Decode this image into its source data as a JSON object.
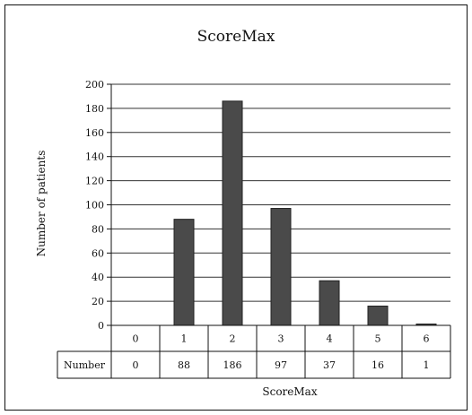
{
  "chart_data": {
    "type": "bar",
    "title": "ScoreMax",
    "xlabel": "ScoreMax",
    "ylabel": "Number of patients",
    "categories": [
      "0",
      "1",
      "2",
      "3",
      "4",
      "5",
      "6"
    ],
    "values": [
      0,
      88,
      186,
      97,
      37,
      16,
      1
    ],
    "ylim": [
      0,
      200
    ],
    "yticks": [
      0,
      20,
      40,
      60,
      80,
      100,
      120,
      140,
      160,
      180,
      200
    ],
    "grid": true,
    "legend": "none",
    "bar_color": "#4a4a4a",
    "table": {
      "row_label": "Number",
      "values": [
        "0",
        "88",
        "186",
        "97",
        "37",
        "16",
        "1"
      ]
    }
  }
}
